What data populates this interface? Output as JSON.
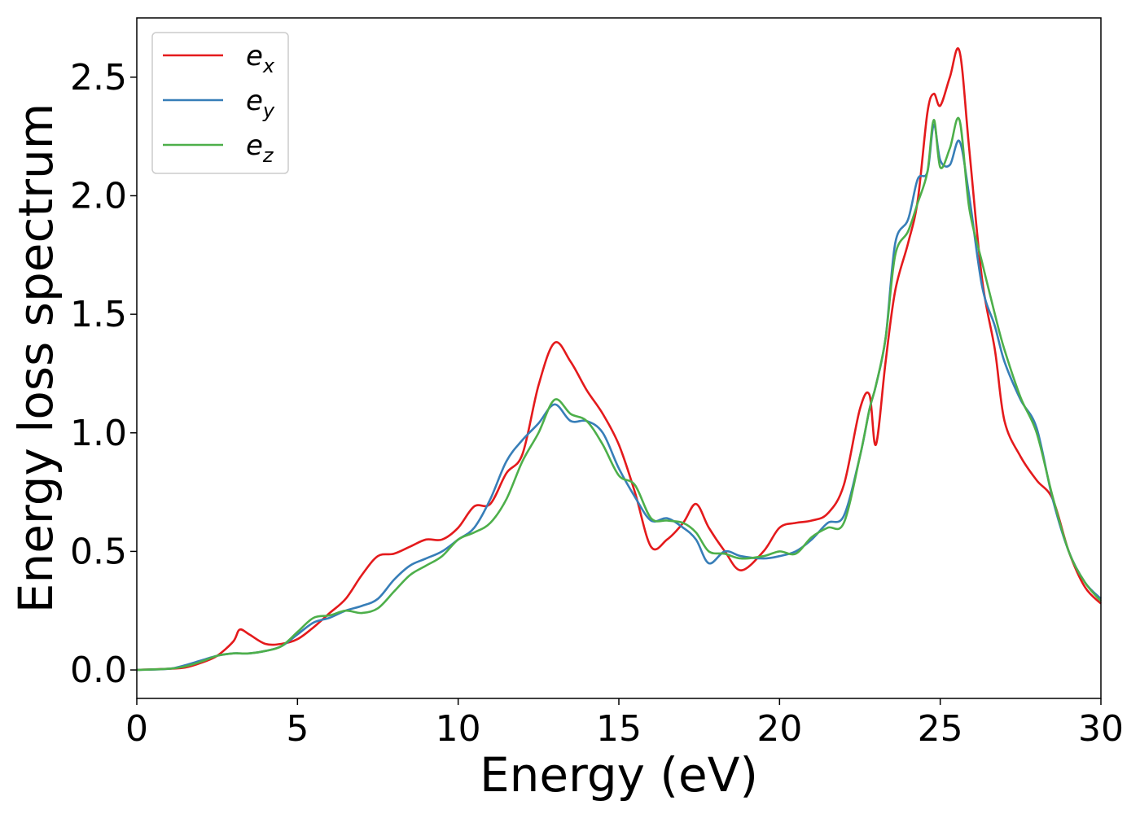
{
  "chart_data": {
    "type": "line",
    "title": "",
    "xlabel": "Energy (eV)",
    "ylabel": "Energy loss spectrum",
    "xlim": [
      0,
      30
    ],
    "ylim": [
      -0.12,
      2.75
    ],
    "xticks": [
      0,
      5,
      10,
      15,
      20,
      25,
      30
    ],
    "xtick_labels": [
      "0",
      "5",
      "10",
      "15",
      "20",
      "25",
      "30"
    ],
    "yticks": [
      0.0,
      0.5,
      1.0,
      1.5,
      2.0,
      2.5
    ],
    "ytick_labels": [
      "0.0",
      "0.5",
      "1.0",
      "1.5",
      "2.0",
      "2.5"
    ],
    "grid": false,
    "legend_position": "top-left",
    "x": [
      0,
      1,
      1.5,
      2,
      2.5,
      3,
      3.2,
      3.5,
      4,
      4.5,
      5,
      5.5,
      6,
      6.5,
      7,
      7.5,
      8,
      8.5,
      9,
      9.5,
      10,
      10.5,
      11,
      11.5,
      12,
      12.5,
      13,
      13.5,
      14,
      14.5,
      15,
      15.5,
      16,
      16.5,
      17,
      17.4,
      17.8,
      18.3,
      18.8,
      19.5,
      20,
      20.5,
      21,
      21.5,
      22,
      22.5,
      22.8,
      23,
      23.3,
      23.6,
      24,
      24.3,
      24.6,
      24.8,
      25,
      25.3,
      25.6,
      25.9,
      26.3,
      26.7,
      27,
      27.5,
      28,
      28.5,
      29,
      29.5,
      30
    ],
    "series": [
      {
        "name": "e_x",
        "color": "#e41a1c",
        "values": [
          0,
          0.005,
          0.01,
          0.03,
          0.06,
          0.12,
          0.17,
          0.15,
          0.11,
          0.11,
          0.13,
          0.18,
          0.24,
          0.3,
          0.4,
          0.48,
          0.49,
          0.52,
          0.55,
          0.55,
          0.6,
          0.69,
          0.7,
          0.83,
          0.91,
          1.2,
          1.38,
          1.3,
          1.18,
          1.08,
          0.95,
          0.75,
          0.52,
          0.55,
          0.62,
          0.7,
          0.6,
          0.5,
          0.42,
          0.5,
          0.6,
          0.62,
          0.63,
          0.66,
          0.78,
          1.1,
          1.16,
          0.95,
          1.3,
          1.6,
          1.8,
          1.98,
          2.35,
          2.43,
          2.38,
          2.5,
          2.61,
          2.2,
          1.65,
          1.35,
          1.05,
          0.9,
          0.8,
          0.72,
          0.5,
          0.35,
          0.28
        ]
      },
      {
        "name": "e_y",
        "color": "#377eb8",
        "values": [
          0,
          0.005,
          0.02,
          0.04,
          0.06,
          0.07,
          0.07,
          0.07,
          0.08,
          0.1,
          0.15,
          0.2,
          0.22,
          0.25,
          0.27,
          0.3,
          0.38,
          0.44,
          0.47,
          0.5,
          0.55,
          0.6,
          0.72,
          0.88,
          0.97,
          1.04,
          1.12,
          1.05,
          1.05,
          1.0,
          0.85,
          0.73,
          0.63,
          0.64,
          0.6,
          0.55,
          0.45,
          0.5,
          0.48,
          0.47,
          0.48,
          0.5,
          0.55,
          0.62,
          0.65,
          0.9,
          1.1,
          1.2,
          1.4,
          1.8,
          1.9,
          2.07,
          2.1,
          2.3,
          2.15,
          2.13,
          2.23,
          2.0,
          1.62,
          1.45,
          1.3,
          1.14,
          1.02,
          0.72,
          0.5,
          0.37,
          0.3
        ]
      },
      {
        "name": "e_z",
        "color": "#4daf4a",
        "values": [
          0,
          0.005,
          0.015,
          0.035,
          0.06,
          0.07,
          0.07,
          0.07,
          0.08,
          0.1,
          0.16,
          0.22,
          0.23,
          0.25,
          0.24,
          0.26,
          0.33,
          0.4,
          0.44,
          0.48,
          0.55,
          0.58,
          0.62,
          0.72,
          0.88,
          1.0,
          1.14,
          1.08,
          1.05,
          0.95,
          0.82,
          0.78,
          0.64,
          0.63,
          0.62,
          0.58,
          0.5,
          0.49,
          0.47,
          0.48,
          0.5,
          0.49,
          0.56,
          0.6,
          0.62,
          0.9,
          1.1,
          1.2,
          1.4,
          1.75,
          1.85,
          1.97,
          2.1,
          2.32,
          2.12,
          2.2,
          2.32,
          1.95,
          1.72,
          1.5,
          1.35,
          1.15,
          1.0,
          0.73,
          0.5,
          0.37,
          0.29
        ]
      }
    ]
  },
  "legend": {
    "items": [
      {
        "base": "e",
        "sub": "x"
      },
      {
        "base": "e",
        "sub": "y"
      },
      {
        "base": "e",
        "sub": "z"
      }
    ]
  }
}
